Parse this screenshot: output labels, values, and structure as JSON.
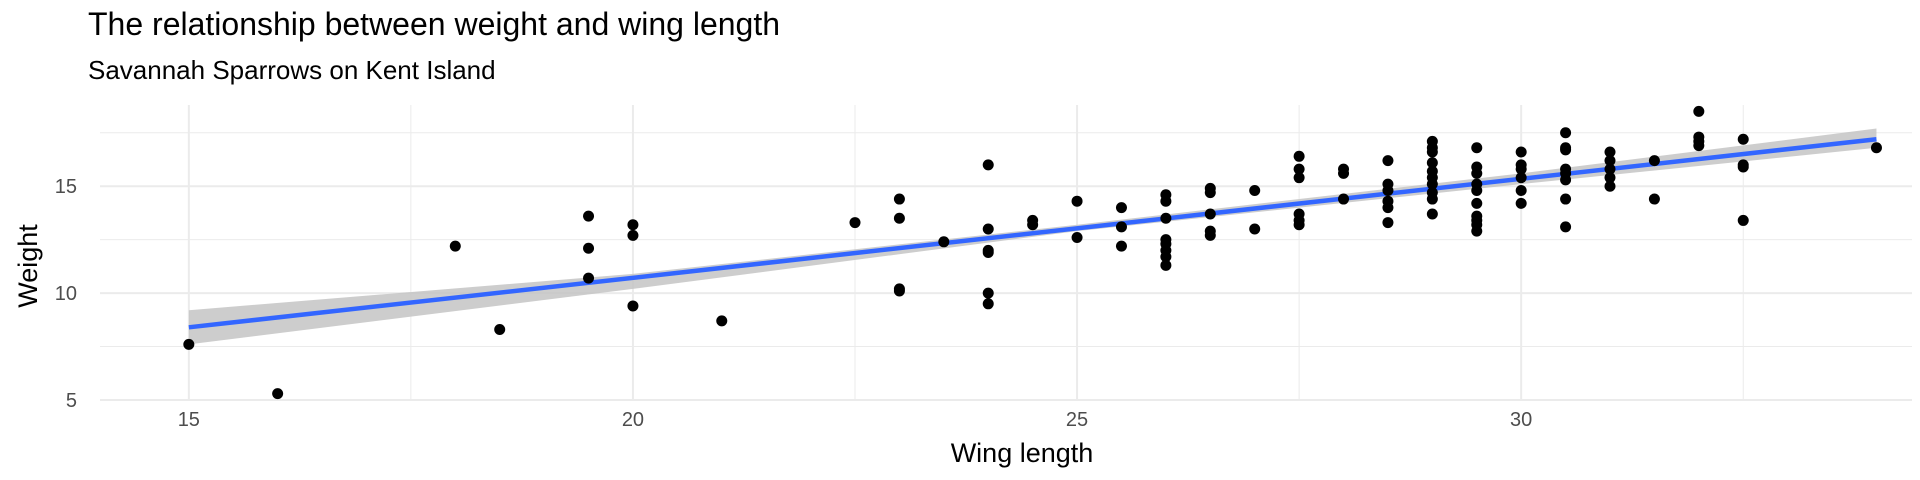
{
  "colors": {
    "background": "#ffffff",
    "grid": "#ebebeb",
    "points": "#000000",
    "fit_line": "#3366ff",
    "confidence_band": "#c4c4c4"
  },
  "chart_data": {
    "type": "scatter",
    "title": "The relationship between weight and wing length",
    "subtitle": "Savannah Sparrows on Kent Island",
    "xlabel": "Wing length",
    "ylabel": "Weight",
    "xlim": [
      14,
      34.4
    ],
    "ylim": [
      5,
      18.8
    ],
    "x_ticks": [
      15,
      20,
      25,
      30
    ],
    "y_ticks": [
      5,
      10,
      15
    ],
    "grid": true,
    "legend": "none",
    "points": [
      [
        15,
        7.6
      ],
      [
        16,
        5.3
      ],
      [
        18,
        12.2
      ],
      [
        18.5,
        8.3
      ],
      [
        19.5,
        13.6
      ],
      [
        19.5,
        12.1
      ],
      [
        19.5,
        10.7
      ],
      [
        20,
        13.2
      ],
      [
        20,
        12.7
      ],
      [
        20,
        9.4
      ],
      [
        21,
        8.7
      ],
      [
        22.5,
        13.3
      ],
      [
        23,
        14.4
      ],
      [
        23,
        13.5
      ],
      [
        23,
        10.2
      ],
      [
        23,
        10.1
      ],
      [
        23.5,
        12.4
      ],
      [
        24,
        16.0
      ],
      [
        24,
        13.0
      ],
      [
        24,
        12.0
      ],
      [
        24,
        11.9
      ],
      [
        24,
        10.0
      ],
      [
        24,
        9.5
      ],
      [
        24.5,
        13.4
      ],
      [
        24.5,
        13.2
      ],
      [
        25,
        14.3
      ],
      [
        25,
        12.6
      ],
      [
        25.5,
        14.0
      ],
      [
        25.5,
        13.1
      ],
      [
        25.5,
        12.2
      ],
      [
        26,
        14.6
      ],
      [
        26,
        14.3
      ],
      [
        26,
        13.5
      ],
      [
        26,
        12.5
      ],
      [
        26,
        12.3
      ],
      [
        26,
        12.0
      ],
      [
        26,
        11.7
      ],
      [
        26,
        11.3
      ],
      [
        26.5,
        14.9
      ],
      [
        26.5,
        14.7
      ],
      [
        26.5,
        13.7
      ],
      [
        26.5,
        12.9
      ],
      [
        26.5,
        12.7
      ],
      [
        27,
        14.8
      ],
      [
        27,
        13.0
      ],
      [
        27.5,
        16.4
      ],
      [
        27.5,
        15.8
      ],
      [
        27.5,
        15.4
      ],
      [
        27.5,
        13.7
      ],
      [
        27.5,
        13.4
      ],
      [
        27.5,
        13.2
      ],
      [
        28,
        15.8
      ],
      [
        28,
        15.6
      ],
      [
        28,
        14.4
      ],
      [
        28.5,
        16.2
      ],
      [
        28.5,
        15.1
      ],
      [
        28.5,
        14.8
      ],
      [
        28.5,
        14.3
      ],
      [
        28.5,
        14.0
      ],
      [
        28.5,
        13.3
      ],
      [
        29,
        17.1
      ],
      [
        29,
        16.8
      ],
      [
        29,
        16.6
      ],
      [
        29,
        16.1
      ],
      [
        29,
        15.7
      ],
      [
        29,
        15.4
      ],
      [
        29,
        15.1
      ],
      [
        29,
        14.7
      ],
      [
        29,
        14.4
      ],
      [
        29,
        13.7
      ],
      [
        29.5,
        16.8
      ],
      [
        29.5,
        15.9
      ],
      [
        29.5,
        15.6
      ],
      [
        29.5,
        15.1
      ],
      [
        29.5,
        14.8
      ],
      [
        29.5,
        14.2
      ],
      [
        29.5,
        13.6
      ],
      [
        29.5,
        13.4
      ],
      [
        29.5,
        13.2
      ],
      [
        29.5,
        12.9
      ],
      [
        30,
        16.6
      ],
      [
        30,
        16.0
      ],
      [
        30,
        15.8
      ],
      [
        30,
        15.4
      ],
      [
        30,
        14.8
      ],
      [
        30,
        14.2
      ],
      [
        30.5,
        17.5
      ],
      [
        30.5,
        16.8
      ],
      [
        30.5,
        16.7
      ],
      [
        30.5,
        15.8
      ],
      [
        30.5,
        15.6
      ],
      [
        30.5,
        15.3
      ],
      [
        30.5,
        14.4
      ],
      [
        30.5,
        13.1
      ],
      [
        31,
        16.6
      ],
      [
        31,
        16.2
      ],
      [
        31,
        15.8
      ],
      [
        31,
        15.4
      ],
      [
        31,
        15.0
      ],
      [
        31.5,
        16.2
      ],
      [
        31.5,
        14.4
      ],
      [
        32,
        18.5
      ],
      [
        32,
        17.3
      ],
      [
        32,
        17.1
      ],
      [
        32,
        16.9
      ],
      [
        32.5,
        17.2
      ],
      [
        32.5,
        16.0
      ],
      [
        32.5,
        15.9
      ],
      [
        32.5,
        13.4
      ],
      [
        34,
        16.8
      ]
    ],
    "fit": {
      "method": "linear",
      "line": [
        [
          15,
          8.4
        ],
        [
          34,
          17.2
        ]
      ],
      "band_lower": [
        [
          15,
          7.6
        ],
        [
          20,
          10.2
        ],
        [
          25,
          12.9
        ],
        [
          30,
          15.1
        ],
        [
          34,
          16.8
        ]
      ],
      "band_upper": [
        [
          15,
          9.2
        ],
        [
          20,
          10.9
        ],
        [
          25,
          13.2
        ],
        [
          30,
          15.6
        ],
        [
          34,
          17.7
        ]
      ]
    }
  }
}
